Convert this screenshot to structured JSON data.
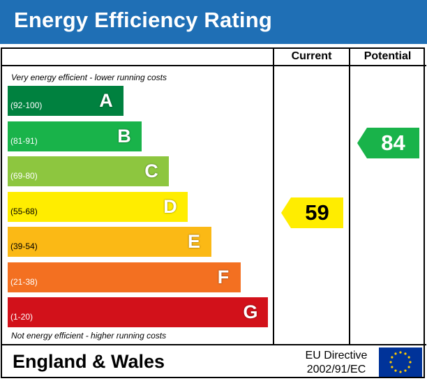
{
  "header": {
    "title": "Energy Efficiency Rating"
  },
  "columns": {
    "current": "Current",
    "potential": "Potential"
  },
  "notes": {
    "top": "Very energy efficient - lower running costs",
    "bottom": "Not energy efficient - higher running costs"
  },
  "footer": {
    "region": "England & Wales",
    "directive_line1": "EU Directive",
    "directive_line2": "2002/91/EC"
  },
  "chart_data": {
    "type": "bar",
    "categories": [
      "A",
      "B",
      "C",
      "D",
      "E",
      "F",
      "G"
    ],
    "ranges": [
      "(92-100)",
      "(81-91)",
      "(69-80)",
      "(55-68)",
      "(39-54)",
      "(21-38)",
      "(1-20)"
    ],
    "band_min": [
      92,
      81,
      69,
      55,
      39,
      21,
      1
    ],
    "band_max": [
      100,
      91,
      80,
      68,
      54,
      38,
      20
    ],
    "colors": [
      "#00813f",
      "#19b34a",
      "#8dc63f",
      "#ffed00",
      "#fbb915",
      "#f37021",
      "#d2111a"
    ],
    "current": {
      "value": 59,
      "label": "59",
      "band": "D",
      "color": "#ffed00"
    },
    "potential": {
      "value": 84,
      "label": "84",
      "band": "B",
      "color": "#19b34a"
    }
  }
}
